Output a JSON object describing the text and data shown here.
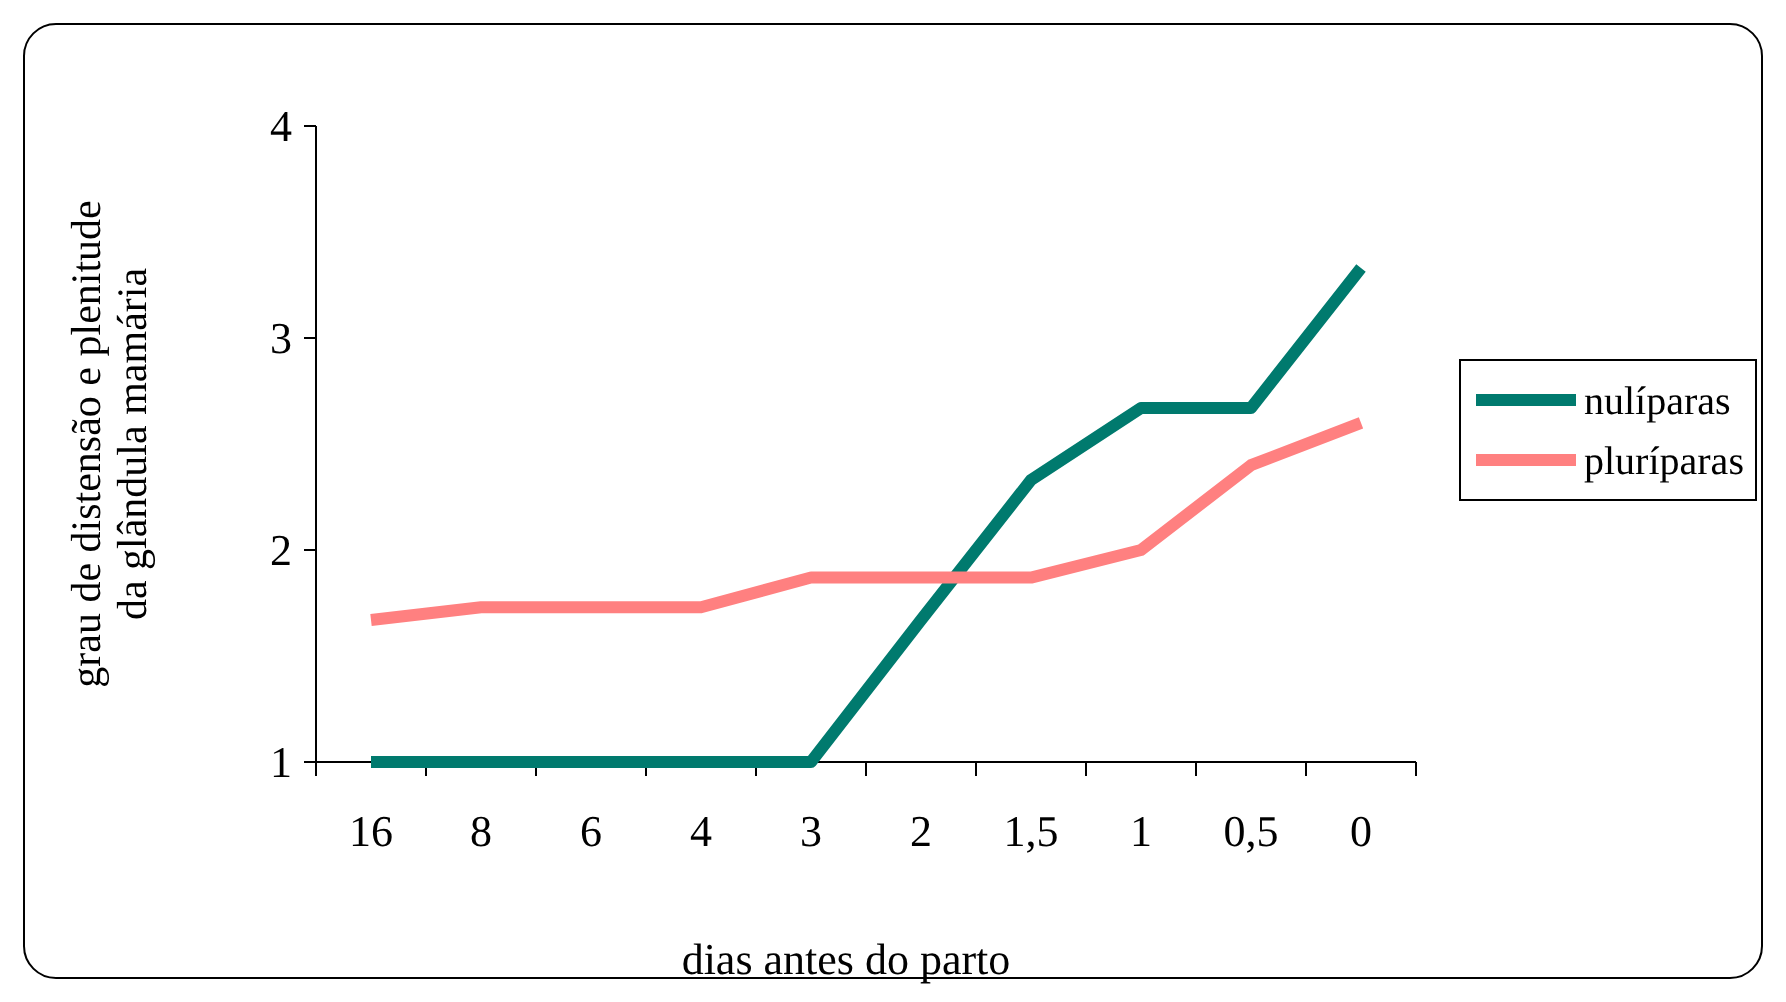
{
  "chart_data": {
    "type": "line",
    "xlabel": "dias antes do parto",
    "ylabel": "grau de distensão e plenitude\nda glândula mamária",
    "categories": [
      "16",
      "8",
      "6",
      "4",
      "3",
      "2",
      "1,5",
      "1",
      "0,5",
      "0"
    ],
    "series": [
      {
        "name": "nulíparas",
        "color": "#007a6e",
        "values": [
          1,
          1,
          1,
          1,
          1,
          1.67,
          2.33,
          2.67,
          2.67,
          3.33
        ]
      },
      {
        "name": "pluríparas",
        "color": "#ff8080",
        "values": [
          1.67,
          1.73,
          1.73,
          1.73,
          1.87,
          1.87,
          1.87,
          2.0,
          2.4,
          2.6
        ]
      }
    ],
    "ylim": [
      1,
      4
    ],
    "yticks": [
      1,
      2,
      3,
      4
    ],
    "grid": false,
    "legend": "right",
    "marker": "none",
    "line_style": "solid"
  }
}
